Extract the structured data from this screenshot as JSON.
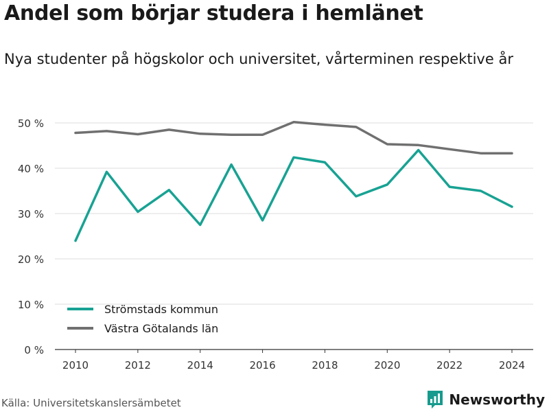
{
  "header": {
    "title": "Andel som börjar studera i hemlänet",
    "subtitle": "Nya studenter på högskolor och universitet, vårterminen respektive år"
  },
  "footer": {
    "source": "Källa: Universitetskanslersämbetet",
    "brand": "Newsworthy",
    "brand_color": "#169b8e"
  },
  "chart_data": {
    "type": "line",
    "title": "Andel som börjar studera i hemlänet",
    "subtitle": "Nya studenter på högskolor och universitet, vårterminen respektive år",
    "xlabel": "",
    "ylabel": "",
    "x": [
      2010,
      2011,
      2012,
      2013,
      2014,
      2015,
      2016,
      2017,
      2018,
      2019,
      2020,
      2021,
      2022,
      2023,
      2024
    ],
    "xticks": [
      "2010",
      "2012",
      "2014",
      "2016",
      "2018",
      "2020",
      "2022",
      "2024"
    ],
    "xlim": [
      2010,
      2024
    ],
    "ylim": [
      0,
      50
    ],
    "yticks": [
      "0 %",
      "10 %",
      "20 %",
      "30 %",
      "40 %",
      "50 %"
    ],
    "grid": true,
    "legend": "bottom-left",
    "series": [
      {
        "name": "Strömstads kommun",
        "color": "#18a293",
        "values": [
          24.0,
          39.2,
          30.4,
          35.2,
          27.5,
          40.8,
          28.5,
          42.4,
          41.3,
          33.8,
          36.4,
          44.0,
          35.9,
          35.0,
          31.5
        ]
      },
      {
        "name": "Västra Götalands län",
        "color": "#707070",
        "values": [
          47.8,
          48.2,
          47.5,
          48.5,
          47.6,
          47.4,
          47.4,
          50.2,
          49.6,
          49.1,
          45.3,
          45.1,
          44.2,
          43.3,
          43.3
        ]
      }
    ]
  }
}
